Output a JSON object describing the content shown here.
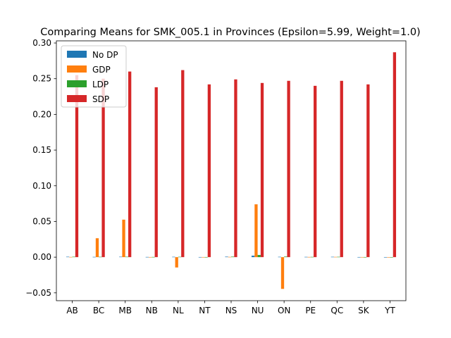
{
  "chart_data": {
    "type": "bar",
    "title": "Comparing Means for SMK_005.1 in Provinces (Epsilon=5.99, Weight=1.0)",
    "xlabel": "",
    "ylabel": "",
    "ylim": [
      -0.061,
      0.303
    ],
    "yticks": [
      -0.05,
      0.0,
      0.05,
      0.1,
      0.15,
      0.2,
      0.25,
      0.3
    ],
    "ytick_labels": [
      "−0.05",
      "0.00",
      "0.05",
      "0.10",
      "0.15",
      "0.20",
      "0.25",
      "0.30"
    ],
    "grid": false,
    "legend_position": "upper-left",
    "categories": [
      "AB",
      "BC",
      "MB",
      "NB",
      "NL",
      "NT",
      "NS",
      "NU",
      "ON",
      "PE",
      "QC",
      "SK",
      "YT"
    ],
    "series": [
      {
        "name": "No DP",
        "color": "#1f77b4",
        "values": [
          0.0006,
          0.0004,
          0.0006,
          0.0003,
          0.0005,
          0.0002,
          0.0007,
          0.002,
          0.0005,
          0.0004,
          0.0005,
          0.0002,
          0.0001
        ]
      },
      {
        "name": "GDP",
        "color": "#ff7f0e",
        "values": [
          0.0003,
          0.0265,
          0.0525,
          0.0002,
          -0.0145,
          0.0002,
          0.0004,
          0.074,
          -0.0445,
          0.0003,
          0.0004,
          0.0002,
          0.0001
        ]
      },
      {
        "name": "LDP",
        "color": "#2ca02c",
        "values": [
          0.0006,
          0.0005,
          0.0006,
          0.0003,
          0.0005,
          0.0002,
          0.0007,
          0.003,
          0.0008,
          0.0004,
          0.0005,
          0.0002,
          0.0001
        ]
      },
      {
        "name": "SDP",
        "color": "#d62728",
        "values": [
          0.255,
          0.25,
          0.26,
          0.238,
          0.262,
          0.242,
          0.249,
          0.244,
          0.247,
          0.24,
          0.247,
          0.242,
          0.287
        ]
      }
    ]
  }
}
